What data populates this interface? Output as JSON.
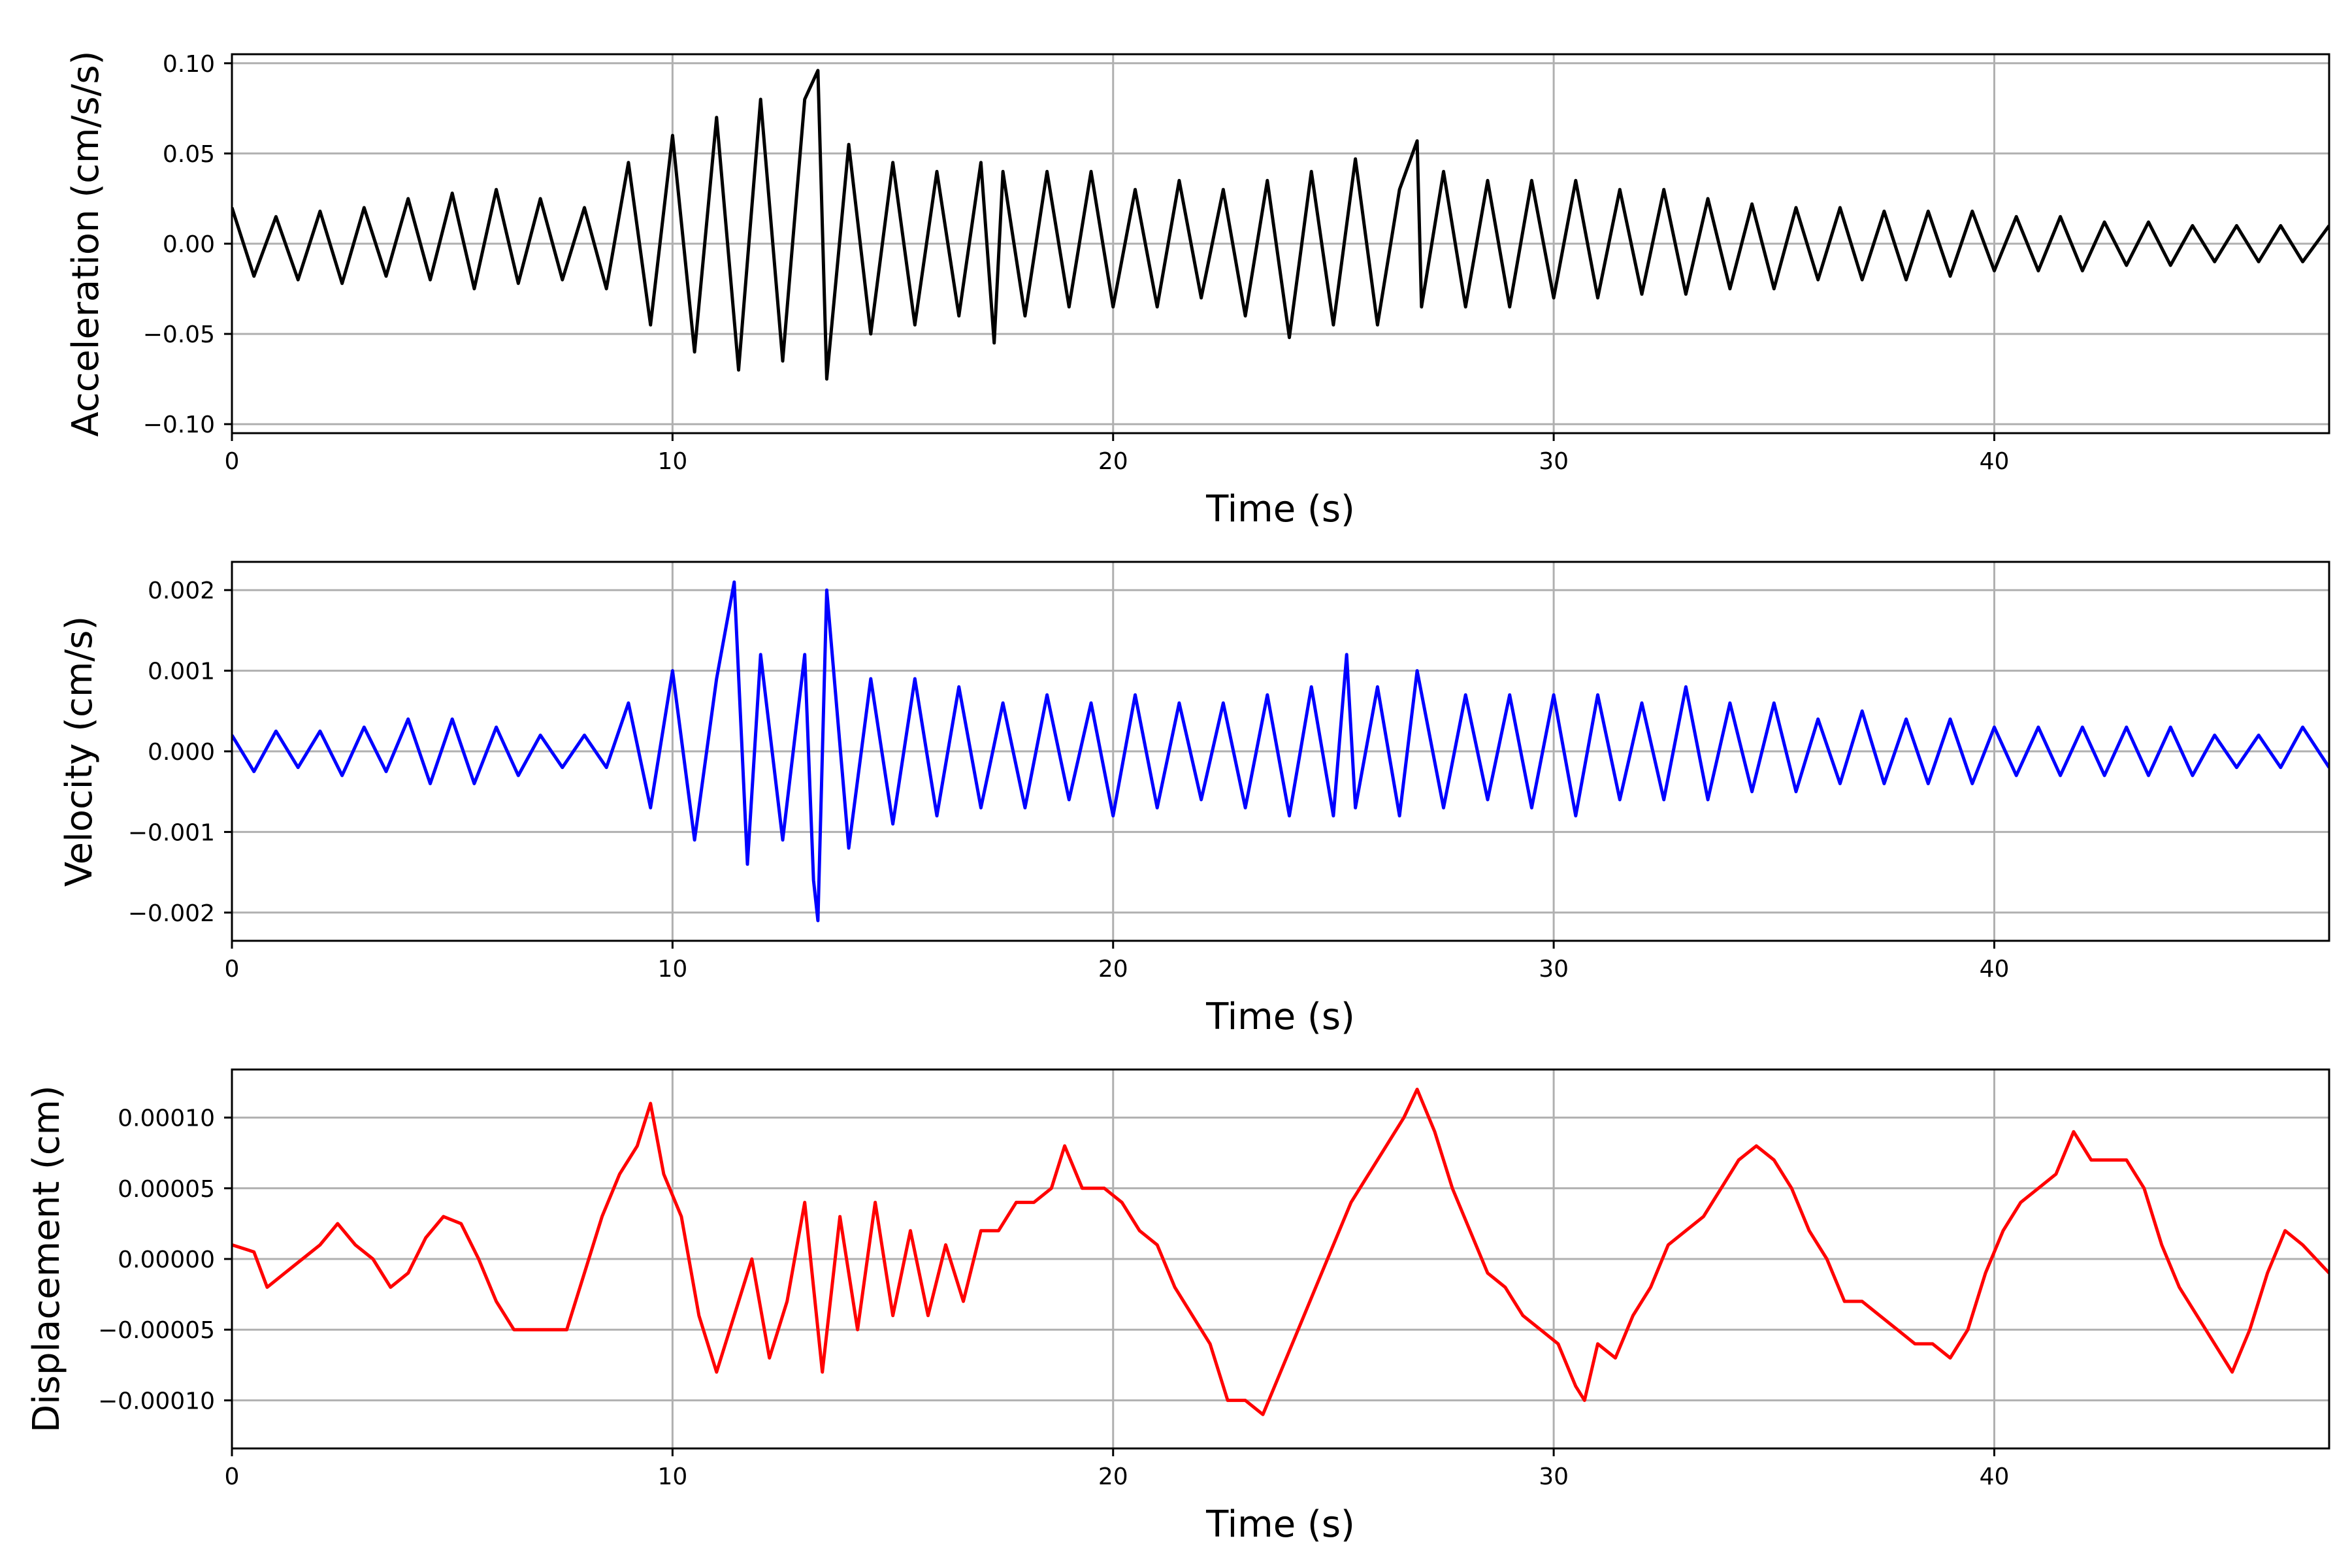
{
  "chart_data": [
    {
      "type": "line",
      "title": "",
      "xlabel": "Time (s)",
      "ylabel": "Acceleration (cm/s/s)",
      "xlim": [
        0,
        47.6
      ],
      "ylim": [
        -0.105,
        0.105
      ],
      "xticks": [
        0,
        10,
        20,
        30,
        40
      ],
      "xtick_labels": [
        "0",
        "10",
        "20",
        "30",
        "40"
      ],
      "yticks": [
        -0.1,
        -0.05,
        0.0,
        0.05,
        0.1
      ],
      "ytick_labels": [
        "−0.10",
        "−0.05",
        "0.00",
        "0.05",
        "0.10"
      ],
      "grid": true,
      "color": "#000000",
      "series": [
        {
          "x": [
            0,
            0.5,
            1,
            1.5,
            2,
            2.5,
            3,
            3.5,
            4,
            4.5,
            5,
            5.5,
            6,
            6.5,
            7,
            7.5,
            8,
            8.5,
            9,
            9.5,
            10,
            10.5,
            11,
            11.5,
            12,
            12.5,
            13,
            13.3,
            13.5,
            14,
            14.5,
            15,
            15.5,
            16,
            16.5,
            17,
            17.3,
            17.5,
            18,
            18.5,
            19,
            19.5,
            20,
            20.5,
            21,
            21.5,
            22,
            22.5,
            23,
            23.5,
            24,
            24.5,
            25,
            25.5,
            26,
            26.5,
            26.9,
            27,
            27.5,
            28,
            28.5,
            29,
            29.5,
            30,
            30.5,
            31,
            31.5,
            32,
            32.5,
            33,
            33.5,
            34,
            34.5,
            35,
            35.5,
            36,
            36.5,
            37,
            37.5,
            38,
            38.5,
            39,
            39.5,
            40,
            40.5,
            41,
            41.5,
            42,
            42.5,
            43,
            43.5,
            44,
            44.5,
            45,
            45.5,
            46,
            46.5,
            47,
            47.6
          ],
          "y": [
            0.02,
            -0.018,
            0.015,
            -0.02,
            0.018,
            -0.022,
            0.02,
            -0.018,
            0.025,
            -0.02,
            0.028,
            -0.025,
            0.03,
            -0.022,
            0.025,
            -0.02,
            0.02,
            -0.025,
            0.045,
            -0.045,
            0.06,
            -0.06,
            0.07,
            -0.07,
            0.08,
            -0.065,
            0.08,
            0.096,
            -0.075,
            0.055,
            -0.05,
            0.045,
            -0.045,
            0.04,
            -0.04,
            0.045,
            -0.055,
            0.04,
            -0.04,
            0.04,
            -0.035,
            0.04,
            -0.035,
            0.03,
            -0.035,
            0.035,
            -0.03,
            0.03,
            -0.04,
            0.035,
            -0.052,
            0.04,
            -0.045,
            0.047,
            -0.045,
            0.03,
            0.057,
            -0.035,
            0.04,
            -0.035,
            0.035,
            -0.035,
            0.035,
            -0.03,
            0.035,
            -0.03,
            0.03,
            -0.028,
            0.03,
            -0.028,
            0.025,
            -0.025,
            0.022,
            -0.025,
            0.02,
            -0.02,
            0.02,
            -0.02,
            0.018,
            -0.02,
            0.018,
            -0.018,
            0.018,
            -0.015,
            0.015,
            -0.015,
            0.015,
            -0.015,
            0.012,
            -0.012,
            0.012,
            -0.012,
            0.01,
            -0.01,
            0.01,
            -0.01,
            0.01,
            -0.01,
            0.01
          ]
        }
      ]
    },
    {
      "type": "line",
      "title": "",
      "xlabel": "Time (s)",
      "ylabel": "Velocity (cm/s)",
      "xlim": [
        0,
        47.6
      ],
      "ylim": [
        -0.00235,
        0.00235
      ],
      "xticks": [
        0,
        10,
        20,
        30,
        40
      ],
      "xtick_labels": [
        "0",
        "10",
        "20",
        "30",
        "40"
      ],
      "yticks": [
        -0.002,
        -0.001,
        0.0,
        0.001,
        0.002
      ],
      "ytick_labels": [
        "−0.002",
        "−0.001",
        "0.000",
        "0.001",
        "0.002"
      ],
      "grid": true,
      "color": "#0000ff",
      "series": [
        {
          "x": [
            0,
            0.5,
            1,
            1.5,
            2,
            2.5,
            3,
            3.5,
            4,
            4.5,
            5,
            5.5,
            6,
            6.5,
            7,
            7.5,
            8,
            8.5,
            9,
            9.5,
            10,
            10.5,
            11,
            11.4,
            11.7,
            12,
            12.5,
            13,
            13.2,
            13.3,
            13.5,
            14,
            14.5,
            15,
            15.5,
            16,
            16.5,
            17,
            17.5,
            18,
            18.5,
            19,
            19.5,
            20,
            20.5,
            21,
            21.5,
            22,
            22.5,
            23,
            23.5,
            24,
            24.5,
            25,
            25.3,
            25.5,
            26,
            26.5,
            26.9,
            27.5,
            28,
            28.5,
            29,
            29.5,
            30,
            30.5,
            31,
            31.5,
            32,
            32.5,
            33,
            33.5,
            34,
            34.5,
            35,
            35.5,
            36,
            36.5,
            37,
            37.5,
            38,
            38.5,
            39,
            39.5,
            40,
            40.5,
            41,
            41.5,
            42,
            42.5,
            43,
            43.5,
            44,
            44.5,
            45,
            45.5,
            46,
            46.5,
            47,
            47.6
          ],
          "y": [
            0.0002,
            -0.00025,
            0.00025,
            -0.0002,
            0.00025,
            -0.0003,
            0.0003,
            -0.00025,
            0.0004,
            -0.0004,
            0.0004,
            -0.0004,
            0.0003,
            -0.0003,
            0.0002,
            -0.0002,
            0.0002,
            -0.0002,
            0.0006,
            -0.0007,
            0.001,
            -0.0011,
            0.0009,
            0.0021,
            -0.0014,
            0.0012,
            -0.0011,
            0.0012,
            -0.0016,
            -0.0021,
            0.002,
            -0.0012,
            0.0009,
            -0.0009,
            0.0009,
            -0.0008,
            0.0008,
            -0.0007,
            0.0006,
            -0.0007,
            0.0007,
            -0.0006,
            0.0006,
            -0.0008,
            0.0007,
            -0.0007,
            0.0006,
            -0.0006,
            0.0006,
            -0.0007,
            0.0007,
            -0.0008,
            0.0008,
            -0.0008,
            0.0012,
            -0.0007,
            0.0008,
            -0.0008,
            0.001,
            -0.0007,
            0.0007,
            -0.0006,
            0.0007,
            -0.0007,
            0.0007,
            -0.0008,
            0.0007,
            -0.0006,
            0.0006,
            -0.0006,
            0.0008,
            -0.0006,
            0.0006,
            -0.0005,
            0.0006,
            -0.0005,
            0.0004,
            -0.0004,
            0.0005,
            -0.0004,
            0.0004,
            -0.0004,
            0.0004,
            -0.0004,
            0.0003,
            -0.0003,
            0.0003,
            -0.0003,
            0.0003,
            -0.0003,
            0.0003,
            -0.0003,
            0.0003,
            -0.0003,
            0.0002,
            -0.0002,
            0.0002,
            -0.0002,
            0.0003,
            -0.0002
          ]
        }
      ]
    },
    {
      "type": "line",
      "title": "",
      "xlabel": "Time (s)",
      "ylabel": "Displacement (cm)",
      "xlim": [
        0,
        47.6
      ],
      "ylim": [
        -0.000134,
        0.000134
      ],
      "xticks": [
        0,
        10,
        20,
        30,
        40
      ],
      "xtick_labels": [
        "0",
        "10",
        "20",
        "30",
        "40"
      ],
      "yticks": [
        -0.0001,
        -5e-05,
        0.0,
        5e-05,
        0.0001
      ],
      "ytick_labels": [
        "−0.00010",
        "−0.00005",
        "0.00000",
        "0.00005",
        "0.00010"
      ],
      "grid": true,
      "color": "#ff0000",
      "series": [
        {
          "x": [
            0,
            0.5,
            0.8,
            1.2,
            1.6,
            2,
            2.4,
            2.8,
            3.2,
            3.6,
            4,
            4.4,
            4.8,
            5.2,
            5.6,
            6,
            6.4,
            6.8,
            7.2,
            7.6,
            8,
            8.4,
            8.8,
            9.2,
            9.5,
            9.8,
            10.2,
            10.6,
            11,
            11.4,
            11.8,
            12.2,
            12.6,
            13,
            13.4,
            13.8,
            14.2,
            14.6,
            15,
            15.4,
            15.8,
            16.2,
            16.6,
            17,
            17.4,
            17.8,
            18.2,
            18.6,
            18.9,
            19.3,
            19.8,
            20.2,
            20.6,
            21,
            21.4,
            21.8,
            22.2,
            22.6,
            23,
            23.4,
            23.8,
            24.2,
            24.6,
            25,
            25.4,
            25.8,
            26.2,
            26.6,
            26.9,
            27.3,
            27.7,
            28.1,
            28.5,
            28.9,
            29.3,
            29.7,
            30.1,
            30.5,
            30.7,
            31,
            31.4,
            31.8,
            32.2,
            32.6,
            33,
            33.4,
            33.8,
            34.2,
            34.6,
            35,
            35.4,
            35.8,
            36.2,
            36.6,
            37,
            37.4,
            37.8,
            38.2,
            38.6,
            39,
            39.4,
            39.8,
            40.2,
            40.6,
            41,
            41.4,
            41.8,
            42.2,
            42.6,
            43,
            43.4,
            43.8,
            44.2,
            44.6,
            45,
            45.4,
            45.8,
            46.2,
            46.6,
            47,
            47.6
          ],
          "y": [
            1e-05,
            5e-06,
            -2e-05,
            -1e-05,
            0.0,
            1e-05,
            2.5e-05,
            1e-05,
            0.0,
            -2e-05,
            -1e-05,
            1.5e-05,
            3e-05,
            2.5e-05,
            0.0,
            -3e-05,
            -5e-05,
            -5e-05,
            -5e-05,
            -5e-05,
            -1e-05,
            3e-05,
            6e-05,
            8e-05,
            0.00011,
            6e-05,
            3e-05,
            -4e-05,
            -8e-05,
            -4e-05,
            0.0,
            -7e-05,
            -3e-05,
            4e-05,
            -8e-05,
            3e-05,
            -5e-05,
            4e-05,
            -4e-05,
            2e-05,
            -4e-05,
            1e-05,
            -3e-05,
            2e-05,
            2e-05,
            4e-05,
            4e-05,
            5e-05,
            8e-05,
            5e-05,
            5e-05,
            4e-05,
            2e-05,
            1e-05,
            -2e-05,
            -4e-05,
            -6e-05,
            -0.0001,
            -0.0001,
            -0.00011,
            -8e-05,
            -5e-05,
            -2e-05,
            1e-05,
            4e-05,
            6e-05,
            8e-05,
            0.0001,
            0.00012,
            9e-05,
            5e-05,
            2e-05,
            -1e-05,
            -2e-05,
            -4e-05,
            -5e-05,
            -6e-05,
            -9e-05,
            -0.0001,
            -6e-05,
            -7e-05,
            -4e-05,
            -2e-05,
            1e-05,
            2e-05,
            3e-05,
            5e-05,
            7e-05,
            8e-05,
            7e-05,
            5e-05,
            2e-05,
            0.0,
            -3e-05,
            -3e-05,
            -4e-05,
            -5e-05,
            -6e-05,
            -6e-05,
            -7e-05,
            -5e-05,
            -1e-05,
            2e-05,
            4e-05,
            5e-05,
            6e-05,
            9e-05,
            7e-05,
            7e-05,
            7e-05,
            5e-05,
            1e-05,
            -2e-05,
            -4e-05,
            -6e-05,
            -8e-05,
            -5e-05,
            -1e-05,
            2e-05,
            1e-05,
            -1e-05
          ]
        }
      ]
    }
  ]
}
